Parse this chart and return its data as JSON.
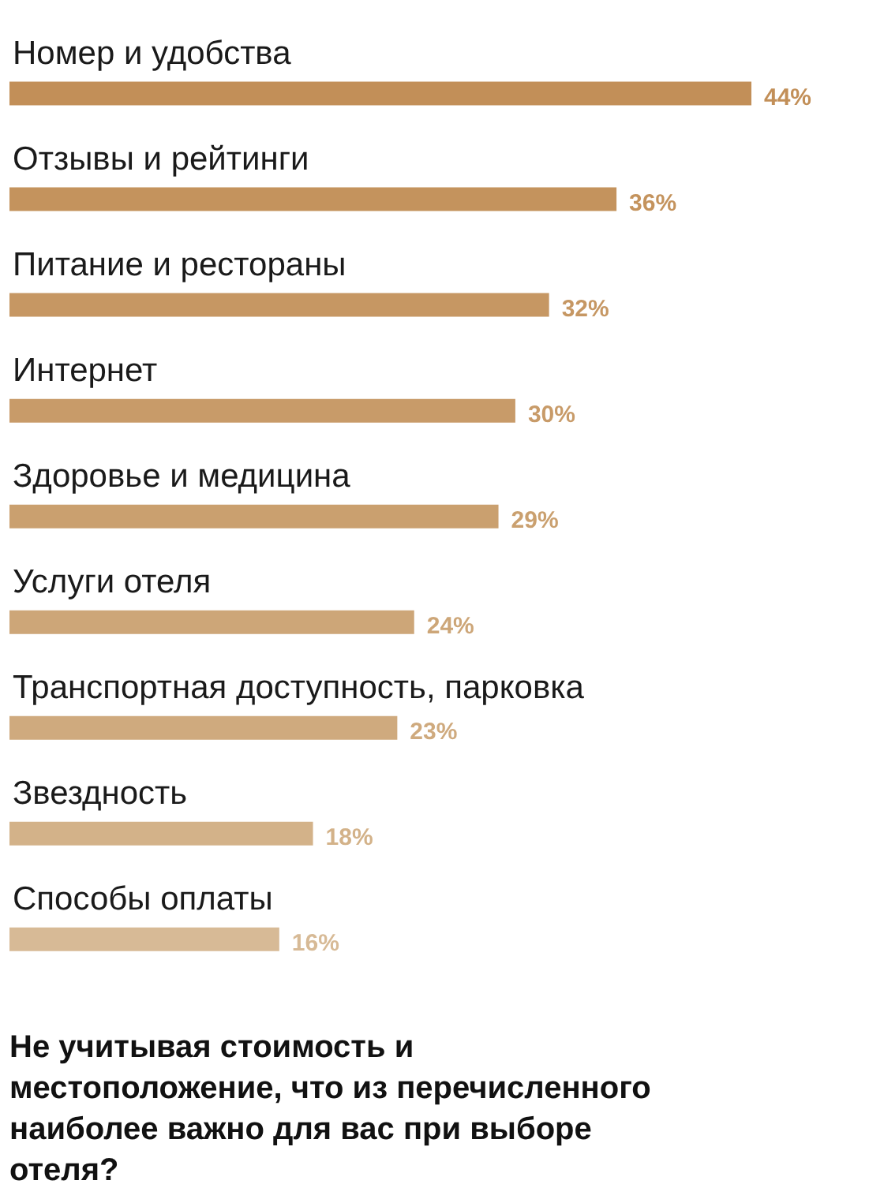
{
  "chart_data": {
    "type": "bar",
    "orientation": "horizontal",
    "title": "Не учитывая стоимость и местоположение, что из перечисленного наиболее важно для вас при выборе отеля?",
    "categories": [
      "Номер и удобства",
      "Отзывы и рейтинги",
      "Питание и рестораны",
      "Интернет",
      "Здоровье и медицина",
      "Услуги отеля",
      "Транспортная доступность, парковка",
      "Звездность",
      "Способы оплаты"
    ],
    "values": [
      44,
      36,
      32,
      30,
      29,
      24,
      23,
      18,
      16
    ],
    "colors": [
      "#c28f58",
      "#c4935d",
      "#c69763",
      "#c89b69",
      "#caa06f",
      "#cda678",
      "#cfaa7e",
      "#d3b289",
      "#d7ba96"
    ],
    "value_labels": [
      "44%",
      "36%",
      "32%",
      "30%",
      "29%",
      "24%",
      "23%",
      "18%",
      "16%"
    ]
  }
}
